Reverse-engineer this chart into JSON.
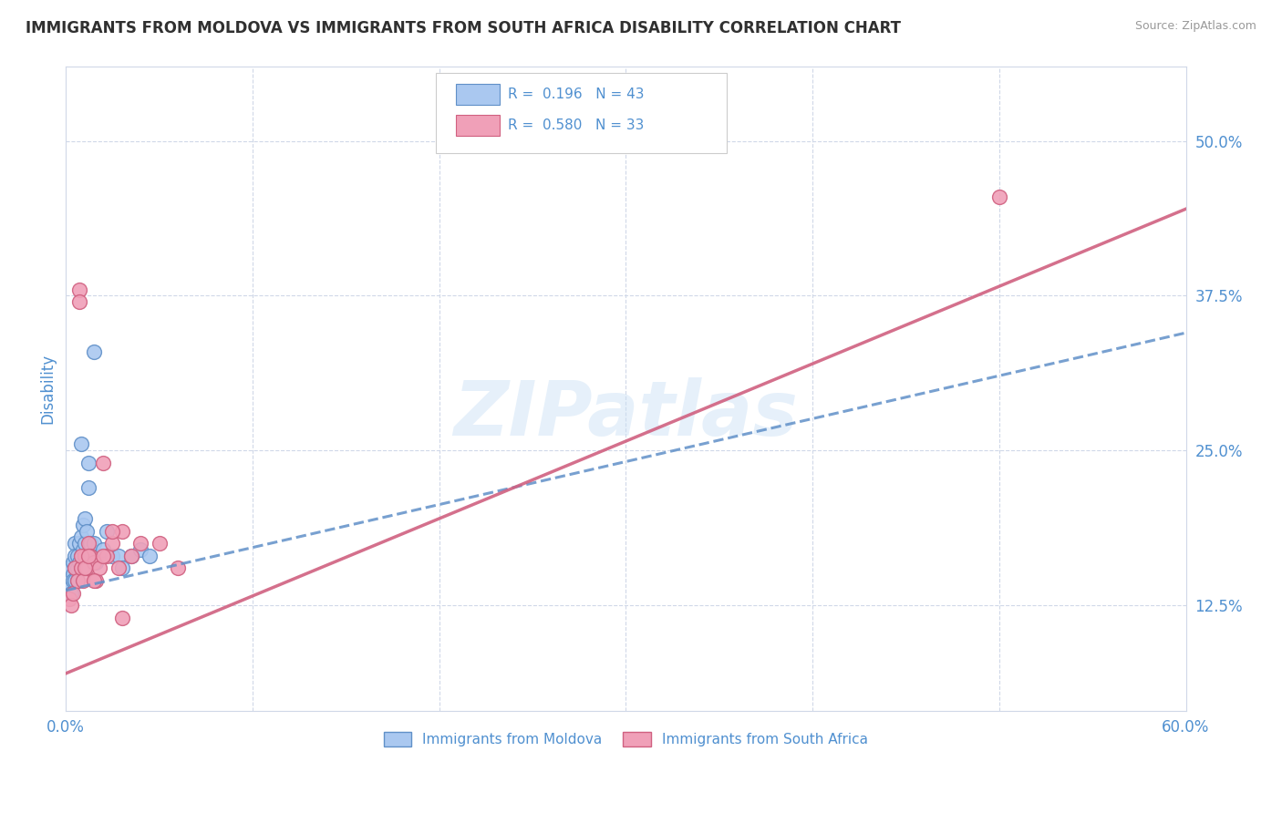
{
  "title": "IMMIGRANTS FROM MOLDOVA VS IMMIGRANTS FROM SOUTH AFRICA DISABILITY CORRELATION CHART",
  "source_text": "Source: ZipAtlas.com",
  "ylabel": "Disability",
  "xlim": [
    0.0,
    0.6
  ],
  "ylim": [
    0.04,
    0.56
  ],
  "xticks": [
    0.0,
    0.1,
    0.2,
    0.3,
    0.4,
    0.5,
    0.6
  ],
  "xticklabels": [
    "0.0%",
    "",
    "",
    "",
    "",
    "",
    "60.0%"
  ],
  "yticks_right": [
    0.125,
    0.25,
    0.375,
    0.5
  ],
  "yticklabels_right": [
    "12.5%",
    "25.0%",
    "37.5%",
    "50.0%"
  ],
  "moldova_color": "#aac8f0",
  "moldova_edge": "#6090c8",
  "south_africa_color": "#f0a0b8",
  "south_africa_edge": "#d06080",
  "R_moldova": 0.196,
  "N_moldova": 43,
  "R_south_africa": 0.58,
  "N_south_africa": 33,
  "legend_label_moldova": "Immigrants from Moldova",
  "legend_label_south_africa": "Immigrants from South Africa",
  "watermark": "ZIPatlas",
  "moldova_x": [
    0.002,
    0.003,
    0.003,
    0.004,
    0.004,
    0.004,
    0.005,
    0.005,
    0.005,
    0.005,
    0.006,
    0.006,
    0.006,
    0.007,
    0.007,
    0.008,
    0.008,
    0.008,
    0.009,
    0.009,
    0.009,
    0.01,
    0.01,
    0.01,
    0.01,
    0.011,
    0.012,
    0.013,
    0.014,
    0.015,
    0.016,
    0.018,
    0.02,
    0.022,
    0.025,
    0.028,
    0.03,
    0.035,
    0.04,
    0.045,
    0.015,
    0.012,
    0.008
  ],
  "moldova_y": [
    0.155,
    0.14,
    0.135,
    0.16,
    0.15,
    0.145,
    0.175,
    0.165,
    0.155,
    0.145,
    0.165,
    0.155,
    0.145,
    0.175,
    0.16,
    0.18,
    0.165,
    0.155,
    0.19,
    0.17,
    0.155,
    0.195,
    0.175,
    0.165,
    0.155,
    0.185,
    0.22,
    0.175,
    0.165,
    0.175,
    0.16,
    0.165,
    0.17,
    0.185,
    0.165,
    0.165,
    0.155,
    0.165,
    0.17,
    0.165,
    0.33,
    0.24,
    0.255
  ],
  "south_africa_x": [
    0.002,
    0.003,
    0.004,
    0.005,
    0.006,
    0.007,
    0.008,
    0.009,
    0.01,
    0.011,
    0.012,
    0.013,
    0.015,
    0.016,
    0.018,
    0.02,
    0.022,
    0.025,
    0.028,
    0.03,
    0.035,
    0.04,
    0.05,
    0.06,
    0.007,
    0.008,
    0.01,
    0.012,
    0.015,
    0.02,
    0.025,
    0.03,
    0.5
  ],
  "south_africa_y": [
    0.13,
    0.125,
    0.135,
    0.155,
    0.145,
    0.38,
    0.155,
    0.145,
    0.165,
    0.155,
    0.175,
    0.165,
    0.16,
    0.145,
    0.155,
    0.24,
    0.165,
    0.175,
    0.155,
    0.185,
    0.165,
    0.175,
    0.175,
    0.155,
    0.37,
    0.165,
    0.155,
    0.165,
    0.145,
    0.165,
    0.185,
    0.115,
    0.455
  ],
  "background_color": "#ffffff",
  "grid_color": "#d0d8e8",
  "title_color": "#303030",
  "axis_label_color": "#5090d0",
  "tick_label_color": "#5090d0"
}
